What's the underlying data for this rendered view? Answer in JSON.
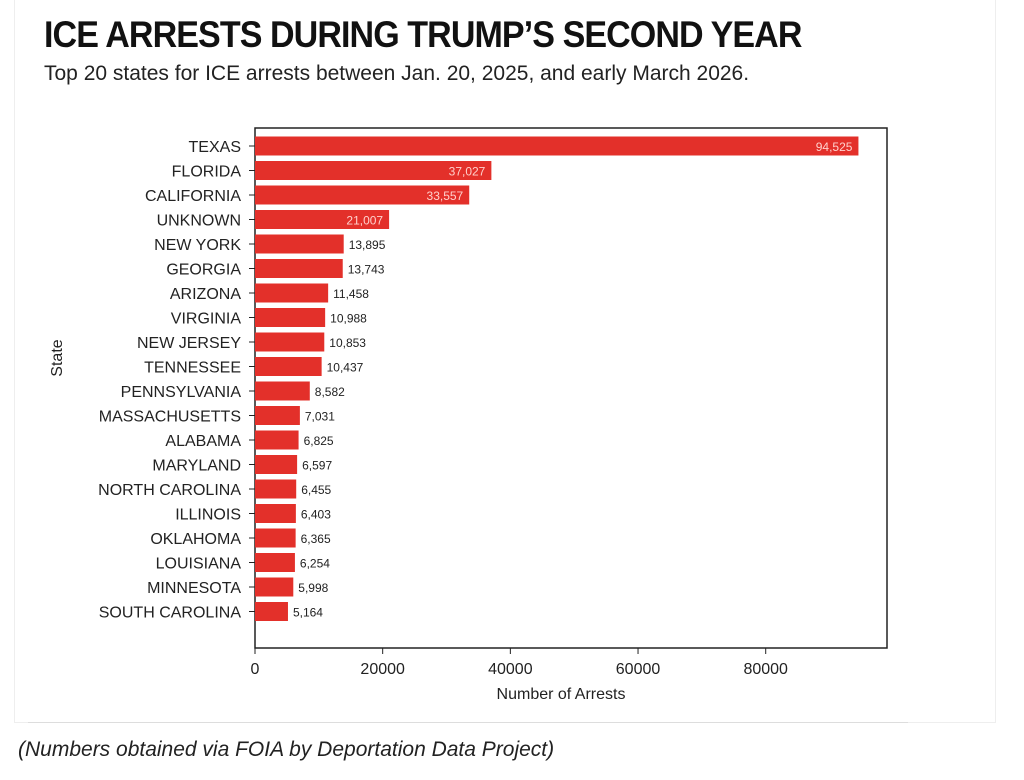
{
  "header": {
    "title": "ICE ARRESTS DURING TRUMP’S SECOND YEAR",
    "subtitle": "Top 20 states for ICE arrests between Jan. 20, 2025, and early March 2026."
  },
  "caption": "(Numbers obtained via FOIA by Deportation Data Project)",
  "chart_data": {
    "type": "bar",
    "orientation": "horizontal",
    "xlabel": "Number of Arrests",
    "ylabel": "State",
    "xlim": [
      0,
      99000
    ],
    "xticks": [
      0,
      20000,
      40000,
      60000,
      80000
    ],
    "grid": false,
    "bar_color": "#e3302a",
    "categories": [
      "TEXAS",
      "FLORIDA",
      "CALIFORNIA",
      "UNKNOWN",
      "NEW YORK",
      "GEORGIA",
      "ARIZONA",
      "VIRGINIA",
      "NEW JERSEY",
      "TENNESSEE",
      "PENNSYLVANIA",
      "MASSACHUSETTS",
      "ALABAMA",
      "MARYLAND",
      "NORTH CAROLINA",
      "ILLINOIS",
      "OKLAHOMA",
      "LOUISIANA",
      "MINNESOTA",
      "SOUTH CAROLINA"
    ],
    "values": [
      94525,
      37027,
      33557,
      21007,
      13895,
      13743,
      11458,
      10988,
      10853,
      10437,
      8582,
      7031,
      6825,
      6597,
      6455,
      6403,
      6365,
      6254,
      5998,
      5164
    ],
    "data_labels": [
      "94,525",
      "37,027",
      "33,557",
      "21,007",
      "13,895",
      "13,743",
      "11,458",
      "10,988",
      "10,853",
      "10,437",
      "8,582",
      "7,031",
      "6,825",
      "6,597",
      "6,455",
      "6,403",
      "6,365",
      "6,254",
      "5,998",
      "5,164"
    ]
  }
}
